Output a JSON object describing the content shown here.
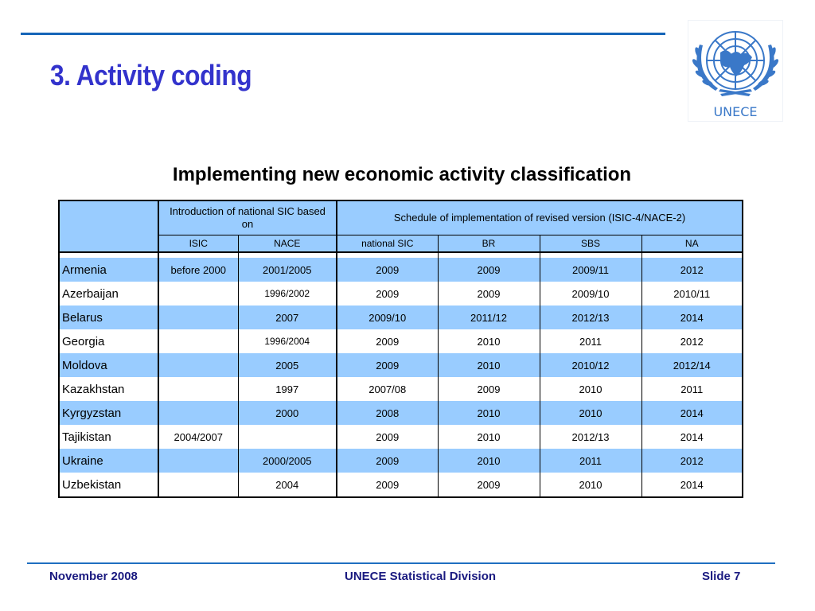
{
  "slide": {
    "title": "3. Activity coding",
    "subtitle": "Implementing new economic activity classification"
  },
  "logo": {
    "icon": "un-emblem-icon",
    "text": "UNECE"
  },
  "colors": {
    "title": "#3333cc",
    "rule": "#1565b8",
    "header_fill": "#99ccff",
    "footer_text": "#1a1a80"
  },
  "table": {
    "group_headers": {
      "intro": "Introduction of national SIC based on",
      "schedule": "Schedule of implementation of revised version (ISIC-4/NACE-2)"
    },
    "columns": [
      "ISIC",
      "NACE",
      "national SIC",
      "BR",
      "SBS",
      "NA"
    ],
    "rows": [
      {
        "country": "Armenia",
        "isic": "before 2000",
        "nace": "2001/2005",
        "national_sic": "2009",
        "br": "2009",
        "sbs": "2009/11",
        "na": "2012"
      },
      {
        "country": "Azerbaijan",
        "isic": "",
        "nace": "1996/2002",
        "national_sic": "2009",
        "br": "2009",
        "sbs": "2009/10",
        "na": "2010/11"
      },
      {
        "country": "Belarus",
        "isic": "",
        "nace": "2007",
        "national_sic": "2009/10",
        "br": "2011/12",
        "sbs": "2012/13",
        "na": "2014"
      },
      {
        "country": "Georgia",
        "isic": "",
        "nace": "1996/2004",
        "national_sic": "2009",
        "br": "2010",
        "sbs": "2011",
        "na": "2012"
      },
      {
        "country": "Moldova",
        "isic": "",
        "nace": "2005",
        "national_sic": "2009",
        "br": "2010",
        "sbs": "2010/12",
        "na": "2012/14"
      },
      {
        "country": "Kazakhstan",
        "isic": "",
        "nace": "1997",
        "national_sic": "2007/08",
        "br": "2009",
        "sbs": "2010",
        "na": "2011"
      },
      {
        "country": "Kyrgyzstan",
        "isic": "",
        "nace": "2000",
        "national_sic": "2008",
        "br": "2010",
        "sbs": "2010",
        "na": "2014"
      },
      {
        "country": "Tajikistan",
        "isic": "2004/2007",
        "nace": "",
        "national_sic": "2009",
        "br": "2010",
        "sbs": "2012/13",
        "na": "2014"
      },
      {
        "country": "Ukraine",
        "isic": "",
        "nace": "2000/2005",
        "national_sic": "2009",
        "br": "2010",
        "sbs": "2011",
        "na": "2012"
      },
      {
        "country": "Uzbekistan",
        "isic": "",
        "nace": "2004",
        "national_sic": "2009",
        "br": "2009",
        "sbs": "2010",
        "na": "2014"
      }
    ]
  },
  "footer": {
    "date": "November 2008",
    "organization": "UNECE Statistical Division",
    "slide_number": "Slide 7"
  }
}
